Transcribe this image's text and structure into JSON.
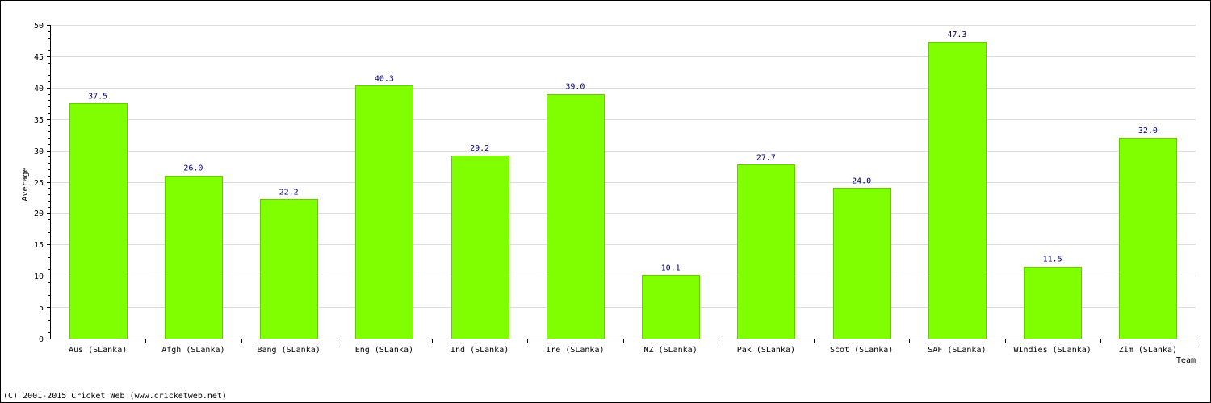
{
  "chart_data": {
    "type": "bar",
    "categories": [
      "Aus (SLanka)",
      "Afgh (SLanka)",
      "Bang (SLanka)",
      "Eng (SLanka)",
      "Ind (SLanka)",
      "Ire (SLanka)",
      "NZ (SLanka)",
      "Pak (SLanka)",
      "Scot (SLanka)",
      "SAF (SLanka)",
      "WIndies (SLanka)",
      "Zim (SLanka)"
    ],
    "values": [
      37.5,
      26.0,
      22.2,
      40.3,
      29.2,
      39.0,
      10.1,
      27.7,
      24.0,
      47.3,
      11.5,
      32.0
    ],
    "value_labels": [
      "37.5",
      "26.0",
      "22.2",
      "40.3",
      "29.2",
      "39.0",
      "10.1",
      "27.7",
      "24.0",
      "47.3",
      "11.5",
      "32.0"
    ],
    "ylabel": "Average",
    "xlabel": "Team",
    "ylim": [
      0,
      50
    ],
    "yticks": [
      0,
      5,
      10,
      15,
      20,
      25,
      30,
      35,
      40,
      45,
      50
    ],
    "ytick_labels": [
      "0",
      "5",
      "10",
      "15",
      "20",
      "25",
      "30",
      "35",
      "40",
      "45",
      "50"
    ],
    "grid": true,
    "colors": {
      "bar_fill": "#80ff00",
      "bar_stroke": "#66cc00",
      "value_label": "#000080",
      "grid": "#dddddd",
      "axis": "#000000"
    }
  },
  "footer": {
    "copyright": "(C) 2001-2015 Cricket Web (www.cricketweb.net)"
  }
}
